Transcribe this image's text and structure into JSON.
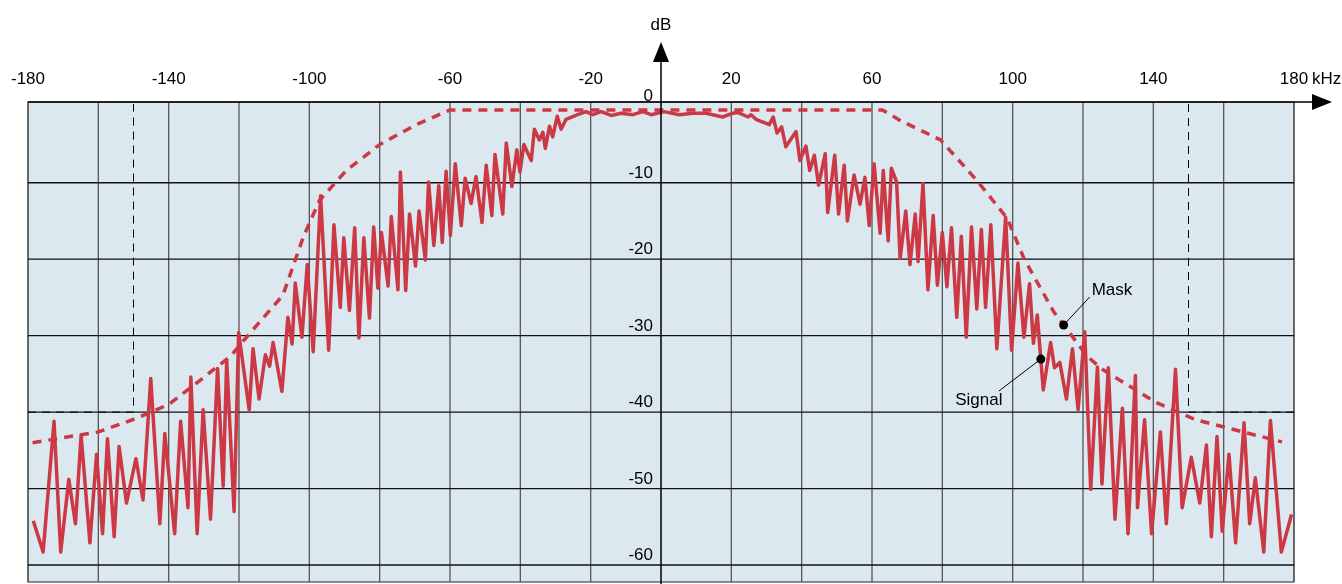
{
  "chart_data": {
    "type": "line",
    "xlabel": "kHz",
    "ylabel": "dB",
    "xlim": [
      -180,
      180
    ],
    "ylim": [
      -60,
      0.3
    ],
    "xticks": [
      -180,
      {
        "value": -160,
        "label": null
      },
      -140,
      {
        "value": -120,
        "label": null
      },
      -100,
      {
        "value": -80,
        "label": null
      },
      -60,
      {
        "value": -40,
        "label": null
      },
      -20,
      {
        "value": 0,
        "label": null
      },
      20,
      {
        "value": 40,
        "label": null
      },
      60,
      {
        "value": 80,
        "label": null
      },
      100,
      {
        "value": 120,
        "label": null
      },
      140,
      {
        "value": 160,
        "label": null
      },
      180
    ],
    "yticks": [
      0,
      -10,
      -20,
      -30,
      -40,
      -50,
      -60
    ],
    "grid": true,
    "marker": "none",
    "legend": false,
    "series": [
      {
        "name": "Signal",
        "color": "#cc3844",
        "line_style": "solid",
        "x": [
          -178.5,
          -175.7,
          -172.6,
          -170.7,
          -168.4,
          -166.5,
          -164.9,
          -162.4,
          -160.5,
          -158.8,
          -157.4,
          -155.5,
          -154.1,
          -152.0,
          -149.3,
          -147.3,
          -145.1,
          -142.5,
          -141.1,
          -138.3,
          -136.6,
          -134.5,
          -133.7,
          -131.9,
          -130.2,
          -128.1,
          -126.1,
          -124.5,
          -123.5,
          -121.4,
          -120.1,
          -117.1,
          -116.0,
          -114.3,
          -112.5,
          -111.3,
          -110.3,
          -107.8,
          -106.1,
          -104.9,
          -104.0,
          -102.1,
          -100.6,
          -98.9,
          -96.8,
          -94.5,
          -93.0,
          -91.2,
          -90.2,
          -88.6,
          -87.1,
          -85.9,
          -84.5,
          -82.9,
          -81.7,
          -80.5,
          -79.5,
          -77.6,
          -76.7,
          -74.8,
          -74.1,
          -72.6,
          -71.5,
          -69.8,
          -68.8,
          -67.0,
          -66.1,
          -64.6,
          -63.2,
          -62.2,
          -61.1,
          -59.9,
          -58.5,
          -56.8,
          -55.7,
          -54.0,
          -52.6,
          -50.9,
          -49.7,
          -48.1,
          -47.2,
          -45.0,
          -44.0,
          -42.4,
          -41.0,
          -40.1,
          -39.0,
          -36.9,
          -36.0,
          -34.6,
          -33.6,
          -32.9,
          -31.7,
          -30.8,
          -29.5,
          -28.4,
          -27.0,
          -23.7,
          -21.3,
          -19.4,
          -17.0,
          -14.2,
          -11.4,
          -8.0,
          -5.2,
          -2.8,
          0.9,
          5.2,
          9.0,
          12.8,
          17.5,
          20.4,
          21.8,
          24.8,
          25.6,
          27.0,
          30.8,
          31.9,
          33.0,
          34.3,
          35.5,
          38.4,
          39.5,
          41.2,
          42.3,
          43.6,
          44.8,
          46.7,
          47.4,
          49.4,
          50.5,
          52.1,
          53.0,
          54.9,
          56.6,
          58.0,
          59.2,
          60.6,
          62.3,
          63.2,
          64.6,
          65.5,
          67.0,
          68.0,
          69.6,
          70.8,
          72.3,
          73.1,
          74.5,
          75.9,
          77.4,
          78.6,
          80.0,
          81.3,
          82.6,
          84.1,
          85.4,
          86.8,
          88.3,
          89.8,
          91.1,
          92.3,
          93.8,
          95.5,
          98.0,
          99.7,
          101.5,
          103.2,
          104.8,
          105.9,
          107.0,
          108.7,
          110.8,
          111.9,
          113.4,
          115.3,
          117.0,
          118.6,
          120.5,
          122.2,
          124.1,
          125.4,
          127.2,
          129.1,
          131.2,
          132.8,
          134.9,
          135.5,
          137.5,
          139.5,
          142.0,
          143.7,
          146.3,
          148.2,
          150.8,
          153.2,
          155.1,
          156.5,
          158.1,
          159.6,
          161.5,
          163.4,
          165.8,
          167.4,
          169.0,
          171.4,
          173.3,
          176.4,
          179.3
        ],
        "values": [
          -54.2,
          -58.3,
          -41.2,
          -58.3,
          -48.8,
          -54.6,
          -43.0,
          -57.1,
          -45.5,
          -55.9,
          -43.5,
          -56.3,
          -44.5,
          -51.9,
          -46.1,
          -51.5,
          -35.6,
          -54.6,
          -42.8,
          -55.9,
          -41.2,
          -52.5,
          -35.4,
          -55.9,
          -39.7,
          -54.0,
          -34.3,
          -49.7,
          -33.2,
          -53.0,
          -29.6,
          -39.7,
          -31.7,
          -38.3,
          -32.5,
          -34.0,
          -30.9,
          -37.3,
          -27.6,
          -31.1,
          -23.1,
          -30.2,
          -20.7,
          -32.1,
          -11.7,
          -31.9,
          -15.5,
          -26.3,
          -17.2,
          -26.7,
          -15.9,
          -30.3,
          -17.2,
          -27.7,
          -15.8,
          -23.8,
          -16.5,
          -23.5,
          -14.4,
          -24.0,
          -8.6,
          -24.1,
          -14.1,
          -20.9,
          -13.7,
          -20.1,
          -9.9,
          -18.2,
          -10.4,
          -17.8,
          -8.5,
          -16.9,
          -7.5,
          -15.6,
          -9.4,
          -12.7,
          -9.2,
          -15.2,
          -7.7,
          -14.3,
          -6.3,
          -14.1,
          -4.8,
          -10.5,
          -5.7,
          -8.6,
          -5.0,
          -7.1,
          -3.0,
          -4.4,
          -3.4,
          -5.5,
          -2.6,
          -4.0,
          -1.3,
          -3.0,
          -1.7,
          -1.1,
          -0.7,
          -1.1,
          -0.7,
          -1.2,
          -0.9,
          -1.1,
          -0.7,
          -1.1,
          -0.7,
          -1.1,
          -0.9,
          -0.9,
          -1.4,
          -0.9,
          -0.8,
          -1.4,
          -1.1,
          -1.7,
          -2.4,
          -1.4,
          -3.5,
          -2.7,
          -5.3,
          -3.3,
          -7.1,
          -5.2,
          -8.4,
          -6.4,
          -10.3,
          -6.2,
          -13.9,
          -6.4,
          -14.1,
          -7.7,
          -15.0,
          -9.0,
          -12.8,
          -9.3,
          -15.6,
          -7.5,
          -16.6,
          -8.4,
          -17.6,
          -8.1,
          -9.9,
          -19.9,
          -13.7,
          -20.7,
          -14.1,
          -20.3,
          -10.1,
          -24.0,
          -14.3,
          -23.4,
          -16.5,
          -23.6,
          -15.9,
          -27.6,
          -17.0,
          -30.2,
          -15.8,
          -26.5,
          -16.1,
          -26.3,
          -15.5,
          -31.7,
          -14.5,
          -31.9,
          -20.5,
          -30.2,
          -23.2,
          -31.0,
          -27.3,
          -37.1,
          -30.9,
          -34.2,
          -33.5,
          -38.3,
          -31.7,
          -39.7,
          -29.5,
          -50.1,
          -34.1,
          -49.4,
          -34.2,
          -54.0,
          -39.5,
          -55.9,
          -35.2,
          -52.5,
          -41.0,
          -55.9,
          -42.6,
          -54.6,
          -34.4,
          -52.5,
          -45.9,
          -51.9,
          -44.3,
          -56.3,
          -43.2,
          -55.6,
          -45.5,
          -57.1,
          -41.4,
          -54.6,
          -48.6,
          -58.3,
          -41.1,
          -58.3,
          -53.4
        ]
      },
      {
        "name": "Mask",
        "color": "#cc3844",
        "line_style": "dashed",
        "x": [
          -178.7,
          -160,
          -149.1,
          -140,
          -132.6,
          -122.2,
          -118.8,
          -107.5,
          -101.8,
          -97.1,
          -89.5,
          -80.0,
          -69.6,
          -60.1,
          63.0,
          68.2,
          79.5,
          90.0,
          98.5,
          103.2,
          111.7,
          121.2,
          125.5,
          140.6,
          152.0,
          176.6
        ],
        "values": [
          -44.0,
          -42.6,
          -40.8,
          -39.0,
          -36.4,
          -32.6,
          -30.7,
          -24.7,
          -17.2,
          -12.3,
          -8.4,
          -5.0,
          -2.4,
          -0.5,
          -0.5,
          -1.9,
          -4.4,
          -9.8,
          -14.7,
          -19.9,
          -26.9,
          -32.7,
          -34.4,
          -38.7,
          -41.0,
          -43.9
        ]
      },
      {
        "color": "#000000",
        "line_style": "dashed",
        "x": [
          -180,
          -150,
          -150
        ],
        "values": [
          -40,
          -40,
          0.3
        ]
      },
      {
        "color": "#000000",
        "line_style": "dashed",
        "x": [
          150,
          150,
          180
        ],
        "values": [
          0.3,
          -40,
          -40
        ]
      }
    ]
  }
}
